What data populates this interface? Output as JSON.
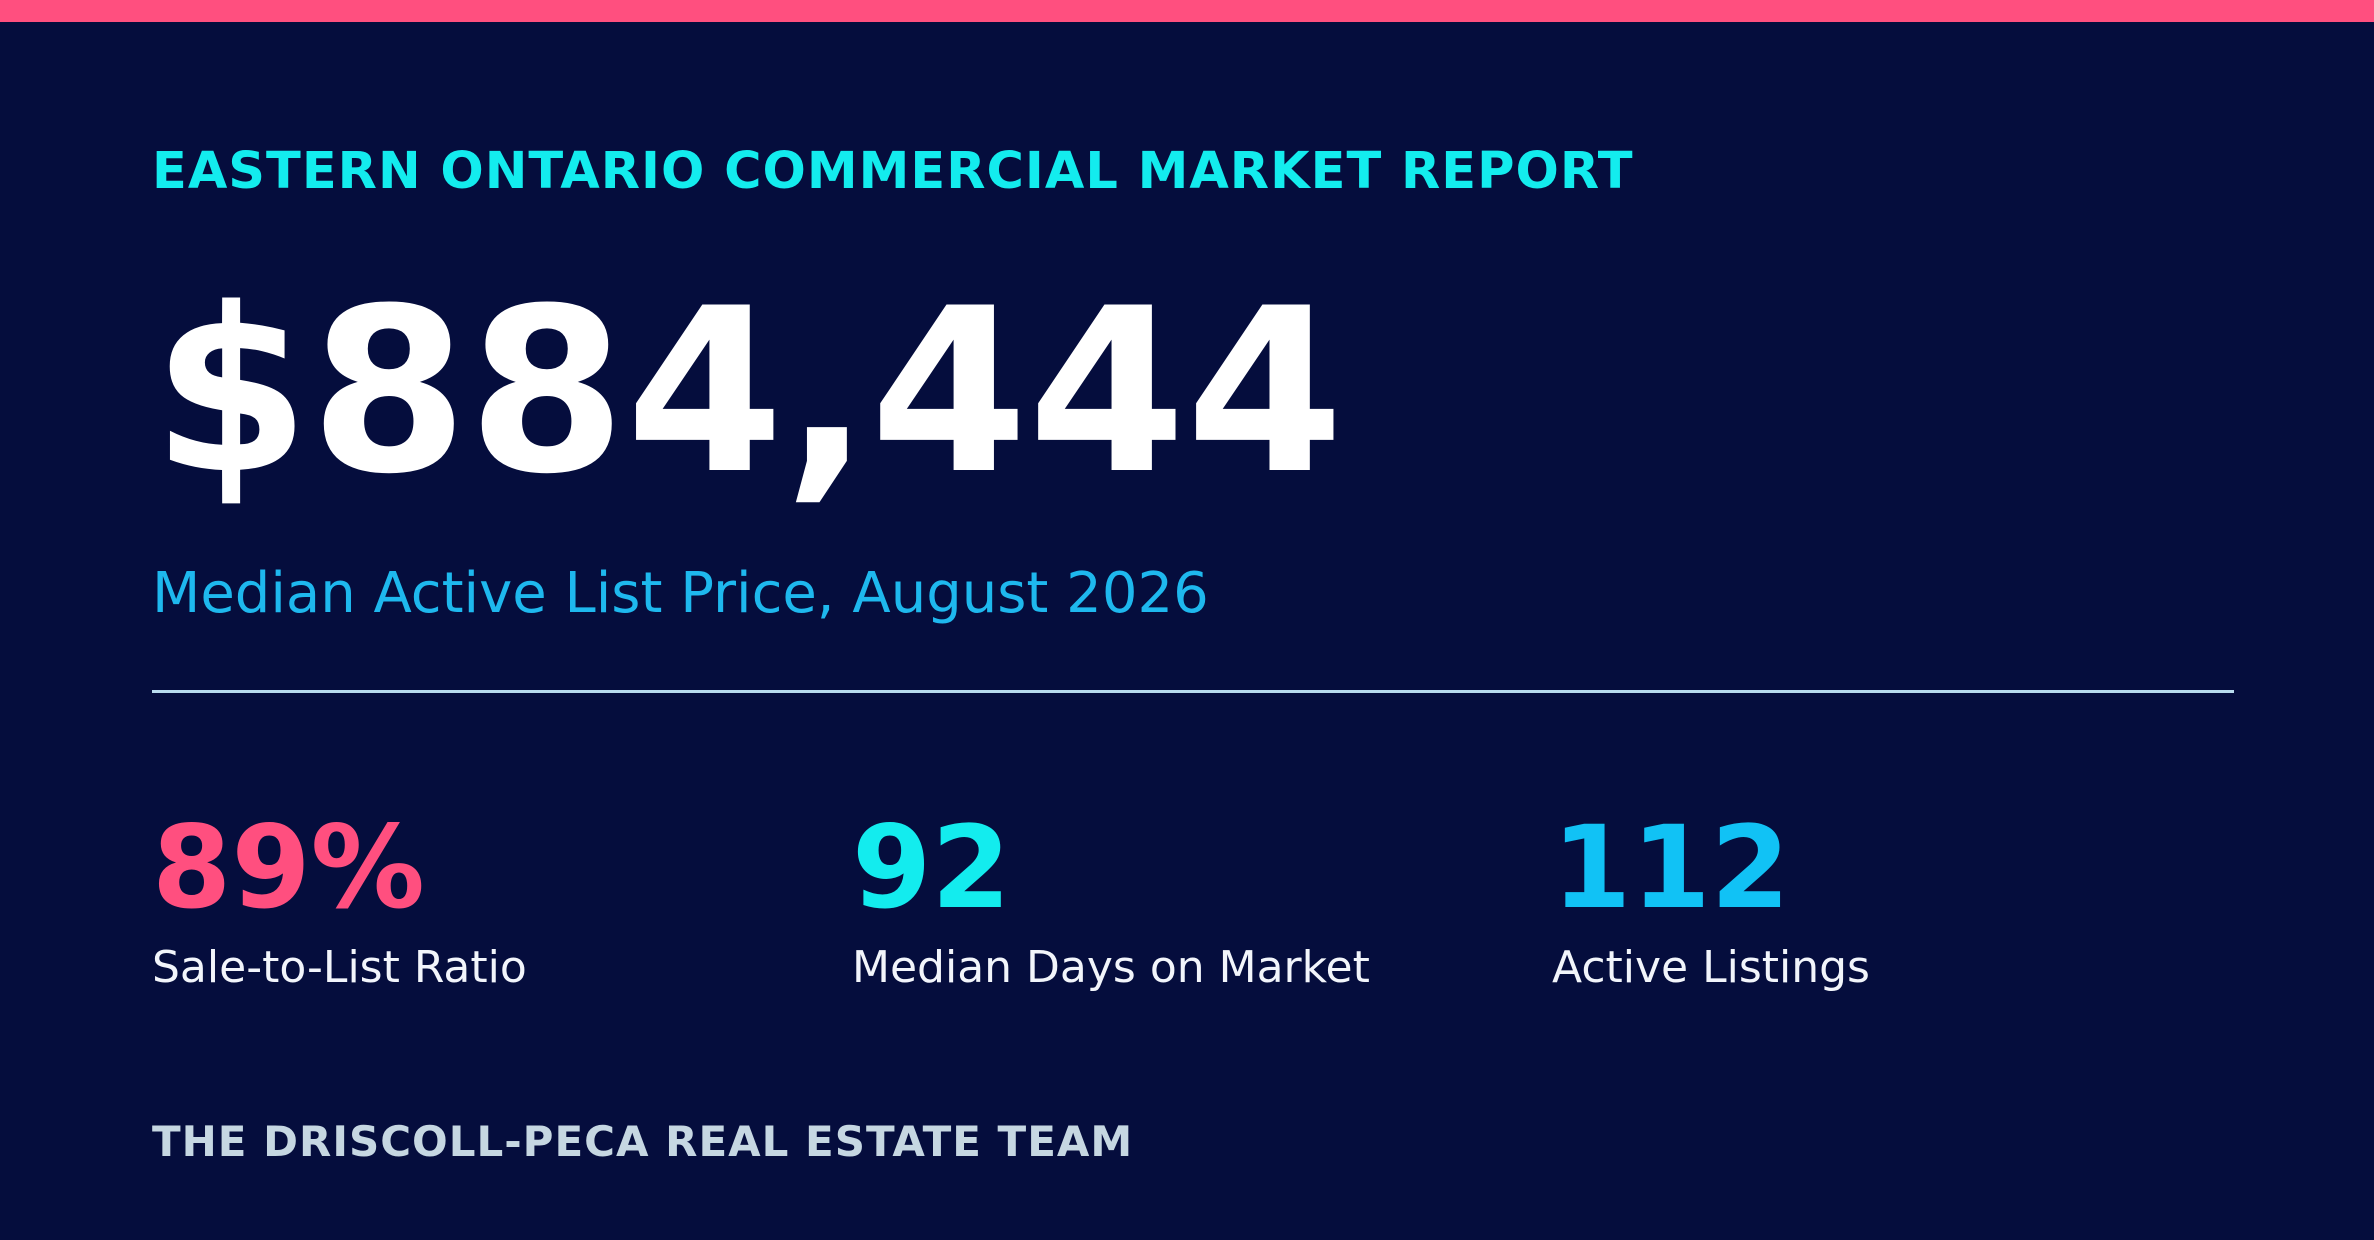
{
  "report": {
    "title": "EASTERN ONTARIO COMMERCIAL MARKET REPORT"
  },
  "hero": {
    "value": "$884,444",
    "caption": "Median Active List Price, August 2026"
  },
  "stats": [
    {
      "value": "89%",
      "label": "Sale-to-List Ratio"
    },
    {
      "value": "92",
      "label": "Median Days on Market"
    },
    {
      "value": "112",
      "label": "Active Listings"
    }
  ],
  "footer": {
    "team": "THE DRISCOLL-PECA REAL ESTATE TEAM"
  },
  "colors": {
    "background": "#050d3d",
    "accent_bar": "#ff4f7f",
    "title": "#13ecee",
    "caption": "#1eb8ee",
    "stat_1": "#ff4f7f",
    "stat_2": "#13ecee",
    "stat_3": "#11c2f5"
  }
}
